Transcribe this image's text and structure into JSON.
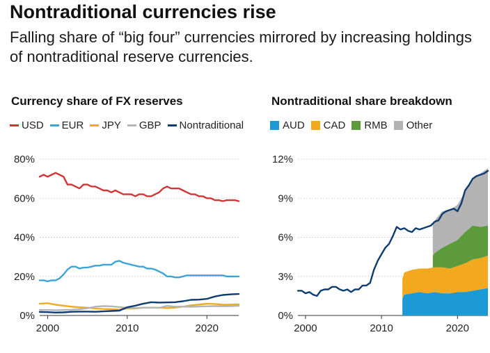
{
  "header": {
    "title": "Nontraditional currencies rise",
    "subtitle": "Falling share of “big four” currencies mirrored by increasing holdings of nontraditional reserve currencies."
  },
  "chart_data": [
    {
      "type": "line",
      "title": "Currency share of FX reserves",
      "xlabel": "",
      "ylabel": "",
      "xlim": [
        1999,
        2024
      ],
      "ylim": [
        0,
        80
      ],
      "x_ticks": [
        2000,
        2010,
        2020
      ],
      "x_tick_labels": [
        "2000",
        "2010",
        "2020"
      ],
      "y_ticks": [
        0,
        20,
        40,
        60,
        80
      ],
      "y_tick_labels": [
        "0%",
        "20%",
        "40%",
        "60%",
        "80%"
      ],
      "grid": "horizontal",
      "legend": "top",
      "series": [
        {
          "name": "USD",
          "color": "#d03535",
          "x": [
            1999,
            1999.5,
            2000,
            2000.5,
            2001,
            2001.5,
            2002,
            2002.5,
            2003,
            2003.5,
            2004,
            2004.5,
            2005,
            2005.5,
            2006,
            2006.5,
            2007,
            2007.5,
            2008,
            2008.5,
            2009,
            2009.5,
            2010,
            2010.5,
            2011,
            2011.5,
            2012,
            2012.5,
            2013,
            2013.5,
            2014,
            2014.5,
            2015,
            2015.5,
            2016,
            2016.5,
            2017,
            2017.5,
            2018,
            2018.5,
            2019,
            2019.5,
            2020,
            2020.5,
            2021,
            2021.5,
            2022,
            2022.5,
            2023,
            2023.5,
            2024
          ],
          "values": [
            71,
            72,
            71,
            72,
            73,
            72,
            71,
            67,
            67,
            66,
            65,
            67,
            67,
            66,
            66,
            65,
            64,
            64,
            63,
            64,
            63,
            62,
            62,
            62,
            61,
            62,
            62,
            61,
            61,
            62,
            63,
            65,
            66,
            65,
            65,
            65,
            64,
            63,
            62,
            62,
            61,
            61,
            60,
            60,
            59,
            59,
            58.5,
            59,
            59,
            59,
            58.5
          ]
        },
        {
          "name": "EUR",
          "color": "#3ba5d8",
          "x": [
            1999,
            1999.5,
            2000,
            2000.5,
            2001,
            2001.5,
            2002,
            2002.5,
            2003,
            2003.5,
            2004,
            2004.5,
            2005,
            2005.5,
            2006,
            2006.5,
            2007,
            2007.5,
            2008,
            2008.5,
            2009,
            2009.5,
            2010,
            2010.5,
            2011,
            2011.5,
            2012,
            2012.5,
            2013,
            2013.5,
            2014,
            2014.5,
            2015,
            2015.5,
            2016,
            2016.5,
            2017,
            2017.5,
            2018,
            2018.5,
            2019,
            2019.5,
            2020,
            2020.5,
            2021,
            2021.5,
            2022,
            2022.5,
            2023,
            2023.5,
            2024
          ],
          "values": [
            18,
            18,
            17.5,
            18,
            18,
            19,
            21,
            23.5,
            25,
            25,
            24,
            24.5,
            24.5,
            25,
            25.5,
            25.5,
            26,
            26,
            26,
            27.5,
            28,
            27,
            26.5,
            26,
            25.5,
            25,
            25,
            24,
            24,
            23.5,
            22.5,
            21.5,
            20,
            20,
            19.5,
            19.5,
            20,
            20.5,
            20.5,
            20.5,
            20.5,
            20.5,
            20.5,
            20.5,
            20.5,
            20.5,
            20.5,
            20,
            20,
            20,
            20
          ]
        },
        {
          "name": "JPY",
          "color": "#f0aa20",
          "x": [
            1999,
            2000,
            2001,
            2002,
            2003,
            2004,
            2005,
            2006,
            2007,
            2008,
            2009,
            2010,
            2011,
            2012,
            2013,
            2014,
            2015,
            2016,
            2017,
            2018,
            2019,
            2020,
            2021,
            2022,
            2023,
            2024
          ],
          "values": [
            6,
            6.3,
            5.5,
            5,
            4.5,
            4.2,
            4,
            3.6,
            3.3,
            3.2,
            3,
            3.6,
            3.6,
            4,
            4,
            4,
            3.8,
            4,
            4.5,
            5.2,
            5.6,
            6,
            5.9,
            5.5,
            5.6,
            5.7
          ]
        },
        {
          "name": "GBP",
          "color": "#b4b4b4",
          "x": [
            1999,
            2000,
            2001,
            2002,
            2003,
            2004,
            2005,
            2006,
            2007,
            2008,
            2009,
            2010,
            2011,
            2012,
            2013,
            2014,
            2015,
            2016,
            2017,
            2018,
            2019,
            2020,
            2021,
            2022,
            2023,
            2024
          ],
          "values": [
            2.8,
            2.8,
            2.7,
            2.8,
            2.9,
            3.2,
            3.7,
            4.5,
            4.8,
            4.7,
            4.3,
            3.9,
            3.8,
            4,
            4,
            3.9,
            4.9,
            4.5,
            4.5,
            4.4,
            4.6,
            4.7,
            4.8,
            4.7,
            4.8,
            4.9
          ]
        },
        {
          "name": "Nontraditional",
          "color": "#0d3b72",
          "x": [
            1999,
            2000,
            2001,
            2002,
            2003,
            2004,
            2005,
            2006,
            2007,
            2008,
            2009,
            2010,
            2011,
            2012,
            2013,
            2014,
            2015,
            2016,
            2017,
            2018,
            2019,
            2020,
            2021,
            2022,
            2023,
            2024
          ],
          "values": [
            1.8,
            1.7,
            1.5,
            1.6,
            1.9,
            2,
            2,
            1.9,
            2.1,
            2.3,
            2.5,
            4.2,
            5,
            6,
            6.8,
            6.6,
            6.7,
            6.8,
            7.3,
            8,
            8.1,
            8.5,
            9.7,
            10.5,
            10.8,
            11
          ]
        }
      ]
    },
    {
      "type": "area",
      "title": "Nontraditional share breakdown",
      "xlabel": "",
      "ylabel": "",
      "xlim": [
        1999,
        2024
      ],
      "ylim": [
        0,
        12
      ],
      "x_ticks": [
        2000,
        2010,
        2020
      ],
      "x_tick_labels": [
        "2000",
        "2010",
        "2020"
      ],
      "y_ticks": [
        0,
        3,
        6,
        9,
        12
      ],
      "y_tick_labels": [
        "0%",
        "3%",
        "6%",
        "9%",
        "12%"
      ],
      "grid": "horizontal",
      "legend": "top",
      "stacked": true,
      "series": [
        {
          "name": "AUD",
          "color": "#1b9ad6",
          "x": [
            2012.75,
            2013,
            2014,
            2015,
            2016,
            2017,
            2018,
            2019,
            2020,
            2021,
            2022,
            2023,
            2024
          ],
          "values": [
            1.3,
            1.6,
            1.7,
            1.8,
            1.7,
            1.8,
            1.7,
            1.7,
            1.8,
            1.8,
            1.9,
            2,
            2.1
          ]
        },
        {
          "name": "CAD",
          "color": "#f2a81f",
          "x": [
            2012.75,
            2013,
            2014,
            2015,
            2016,
            2017,
            2018,
            2019,
            2020,
            2021,
            2022,
            2023,
            2024
          ],
          "values": [
            1.5,
            1.7,
            1.8,
            1.8,
            1.9,
            1.9,
            2,
            1.9,
            2,
            2.2,
            2.4,
            2.4,
            2.5
          ]
        },
        {
          "name": "RMB",
          "color": "#5c9a3b",
          "x": [
            2016.75,
            2017,
            2018,
            2019,
            2020,
            2021,
            2022,
            2023,
            2024
          ],
          "values": [
            0.9,
            1.1,
            1.5,
            1.9,
            2,
            2.4,
            2.6,
            2.4,
            2.3
          ]
        },
        {
          "name": "Other",
          "color": "#b3b3b3",
          "x": [
            2016.75,
            2017,
            2018,
            2019,
            2020,
            2021,
            2022,
            2023,
            2024
          ],
          "values": [
            2.4,
            2.5,
            2.8,
            2.6,
            2.7,
            3.1,
            3.6,
            4.1,
            4.4
          ]
        },
        {
          "name": "Nontraditional total",
          "color": "#0d3b72",
          "line": true,
          "x": [
            1999,
            1999.5,
            2000,
            2000.5,
            2001,
            2001.5,
            2002,
            2002.5,
            2003,
            2003.5,
            2004,
            2004.5,
            2005,
            2005.5,
            2006,
            2006.5,
            2007,
            2007.5,
            2008,
            2008.5,
            2009,
            2009.5,
            2010,
            2010.5,
            2011,
            2011.5,
            2012,
            2012.5,
            2013,
            2013.5,
            2014,
            2014.5,
            2015,
            2015.5,
            2016,
            2016.5,
            2017,
            2017.5,
            2018,
            2018.5,
            2019,
            2019.5,
            2020,
            2020.5,
            2021,
            2021.5,
            2022,
            2022.5,
            2023,
            2023.5,
            2024
          ],
          "values": [
            1.9,
            1.9,
            1.7,
            1.8,
            1.6,
            1.5,
            1.9,
            2,
            2,
            2.2,
            2.2,
            2,
            1.9,
            2,
            1.8,
            2,
            2,
            2.3,
            2.3,
            2.5,
            3.5,
            4.2,
            4.7,
            5.2,
            5.5,
            6.1,
            6.8,
            6.6,
            6.7,
            6.5,
            6.4,
            6.7,
            6.6,
            6.7,
            6.8,
            6.9,
            7.2,
            7.3,
            7.8,
            8,
            8.1,
            8.2,
            8,
            8.6,
            9.6,
            10,
            10.5,
            10.7,
            10.8,
            10.9,
            11.1
          ]
        }
      ]
    }
  ]
}
